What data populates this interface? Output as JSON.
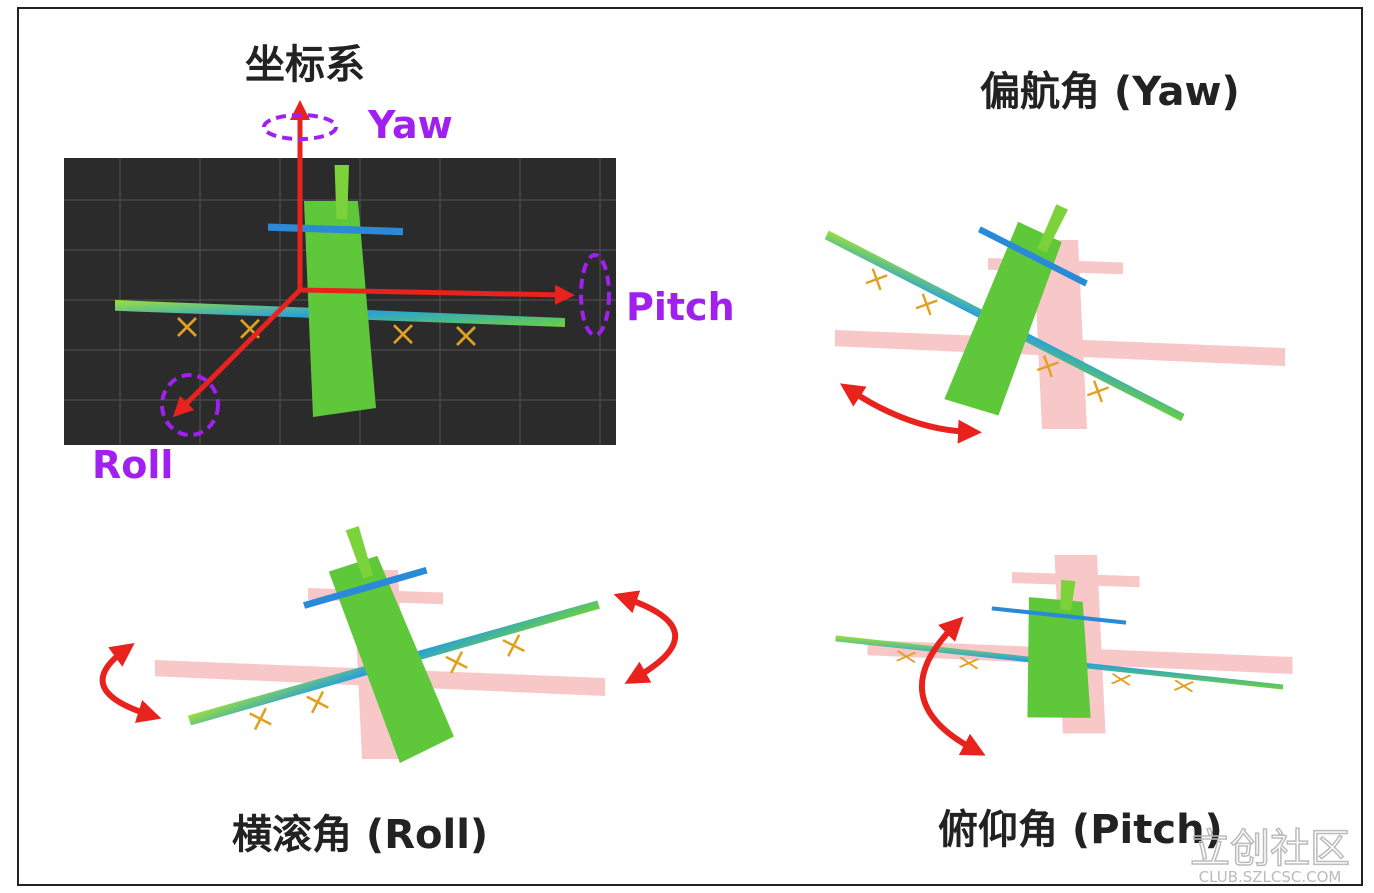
{
  "title": "坐标系",
  "axes": {
    "yaw": "Yaw",
    "pitch": "Pitch",
    "roll": "Roll"
  },
  "panels": [
    {
      "label": "偏航角 (Yaw)"
    },
    {
      "label": "横滚角 (Roll)"
    },
    {
      "label": "俯仰角 (Pitch)"
    }
  ],
  "watermark": {
    "name": "立创社区",
    "url": "CLUB.SZLCSC.COM"
  }
}
